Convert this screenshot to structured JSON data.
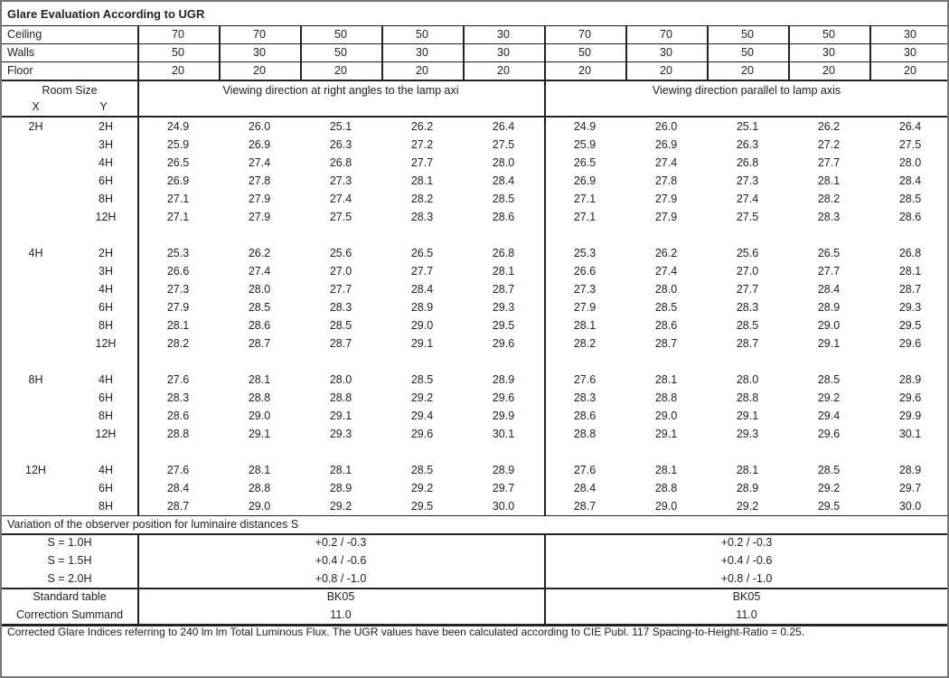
{
  "title": "Glare Evaluation According to UGR",
  "reflectances": [
    {
      "label": "Ceiling",
      "values": [
        "70",
        "70",
        "50",
        "50",
        "30",
        "70",
        "70",
        "50",
        "50",
        "30"
      ]
    },
    {
      "label": "Walls",
      "values": [
        "50",
        "30",
        "50",
        "30",
        "30",
        "50",
        "30",
        "50",
        "30",
        "30"
      ]
    },
    {
      "label": "Floor",
      "values": [
        "20",
        "20",
        "20",
        "20",
        "20",
        "20",
        "20",
        "20",
        "20",
        "20"
      ]
    }
  ],
  "room_size_label": "Room Size",
  "x_label": "X",
  "y_label": "Y",
  "direction_right_angles": "Viewing direction at right angles to the lamp axi",
  "direction_parallel": "Viewing direction parallel to lamp axis",
  "groups": [
    {
      "x": "2H",
      "rows": [
        {
          "y": "2H",
          "values": [
            "24.9",
            "26.0",
            "25.1",
            "26.2",
            "26.4",
            "24.9",
            "26.0",
            "25.1",
            "26.2",
            "26.4"
          ]
        },
        {
          "y": "3H",
          "values": [
            "25.9",
            "26.9",
            "26.3",
            "27.2",
            "27.5",
            "25.9",
            "26.9",
            "26.3",
            "27.2",
            "27.5"
          ]
        },
        {
          "y": "4H",
          "values": [
            "26.5",
            "27.4",
            "26.8",
            "27.7",
            "28.0",
            "26.5",
            "27.4",
            "26.8",
            "27.7",
            "28.0"
          ]
        },
        {
          "y": "6H",
          "values": [
            "26.9",
            "27.8",
            "27.3",
            "28.1",
            "28.4",
            "26.9",
            "27.8",
            "27.3",
            "28.1",
            "28.4"
          ]
        },
        {
          "y": "8H",
          "values": [
            "27.1",
            "27.9",
            "27.4",
            "28.2",
            "28.5",
            "27.1",
            "27.9",
            "27.4",
            "28.2",
            "28.5"
          ]
        },
        {
          "y": "12H",
          "values": [
            "27.1",
            "27.9",
            "27.5",
            "28.3",
            "28.6",
            "27.1",
            "27.9",
            "27.5",
            "28.3",
            "28.6"
          ]
        }
      ]
    },
    {
      "x": "4H",
      "rows": [
        {
          "y": "2H",
          "values": [
            "25.3",
            "26.2",
            "25.6",
            "26.5",
            "26.8",
            "25.3",
            "26.2",
            "25.6",
            "26.5",
            "26.8"
          ]
        },
        {
          "y": "3H",
          "values": [
            "26.6",
            "27.4",
            "27.0",
            "27.7",
            "28.1",
            "26.6",
            "27.4",
            "27.0",
            "27.7",
            "28.1"
          ]
        },
        {
          "y": "4H",
          "values": [
            "27.3",
            "28.0",
            "27.7",
            "28.4",
            "28.7",
            "27.3",
            "28.0",
            "27.7",
            "28.4",
            "28.7"
          ]
        },
        {
          "y": "6H",
          "values": [
            "27.9",
            "28.5",
            "28.3",
            "28.9",
            "29.3",
            "27.9",
            "28.5",
            "28.3",
            "28.9",
            "29.3"
          ]
        },
        {
          "y": "8H",
          "values": [
            "28.1",
            "28.6",
            "28.5",
            "29.0",
            "29.5",
            "28.1",
            "28.6",
            "28.5",
            "29.0",
            "29.5"
          ]
        },
        {
          "y": "12H",
          "values": [
            "28.2",
            "28.7",
            "28.7",
            "29.1",
            "29.6",
            "28.2",
            "28.7",
            "28.7",
            "29.1",
            "29.6"
          ]
        }
      ]
    },
    {
      "x": "8H",
      "rows": [
        {
          "y": "4H",
          "values": [
            "27.6",
            "28.1",
            "28.0",
            "28.5",
            "28.9",
            "27.6",
            "28.1",
            "28.0",
            "28.5",
            "28.9"
          ]
        },
        {
          "y": "6H",
          "values": [
            "28.3",
            "28.8",
            "28.8",
            "29.2",
            "29.6",
            "28.3",
            "28.8",
            "28.8",
            "29.2",
            "29.6"
          ]
        },
        {
          "y": "8H",
          "values": [
            "28.6",
            "29.0",
            "29.1",
            "29.4",
            "29.9",
            "28.6",
            "29.0",
            "29.1",
            "29.4",
            "29.9"
          ]
        },
        {
          "y": "12H",
          "values": [
            "28.8",
            "29.1",
            "29.3",
            "29.6",
            "30.1",
            "28.8",
            "29.1",
            "29.3",
            "29.6",
            "30.1"
          ]
        }
      ]
    },
    {
      "x": "12H",
      "rows": [
        {
          "y": "4H",
          "values": [
            "27.6",
            "28.1",
            "28.1",
            "28.5",
            "28.9",
            "27.6",
            "28.1",
            "28.1",
            "28.5",
            "28.9"
          ]
        },
        {
          "y": "6H",
          "values": [
            "28.4",
            "28.8",
            "28.9",
            "29.2",
            "29.7",
            "28.4",
            "28.8",
            "28.9",
            "29.2",
            "29.7"
          ]
        },
        {
          "y": "8H",
          "values": [
            "28.7",
            "29.0",
            "29.2",
            "29.5",
            "30.0",
            "28.7",
            "29.0",
            "29.2",
            "29.5",
            "30.0"
          ]
        }
      ]
    }
  ],
  "variation_title": "Variation of the observer position for luminaire distances S",
  "variations": [
    {
      "label": "S = 1.0H",
      "right": "+0.2 / -0.3",
      "parallel": "+0.2 / -0.3"
    },
    {
      "label": "S = 1.5H",
      "right": "+0.4 / -0.6",
      "parallel": "+0.4 / -0.6"
    },
    {
      "label": "S = 2.0H",
      "right": "+0.8 / -1.0",
      "parallel": "+0.8 / -1.0"
    }
  ],
  "standard": [
    {
      "label": "Standard table",
      "right": "BK05",
      "parallel": "BK05"
    },
    {
      "label": "Correction Summand",
      "right": "11.0",
      "parallel": "11.0"
    }
  ],
  "footer": "Corrected Glare Indices referring to 240 lm lm Total Luminous Flux. The UGR values have been calculated according to CIE Publ. 117    Spacing-to-Height-Ratio = 0.25."
}
